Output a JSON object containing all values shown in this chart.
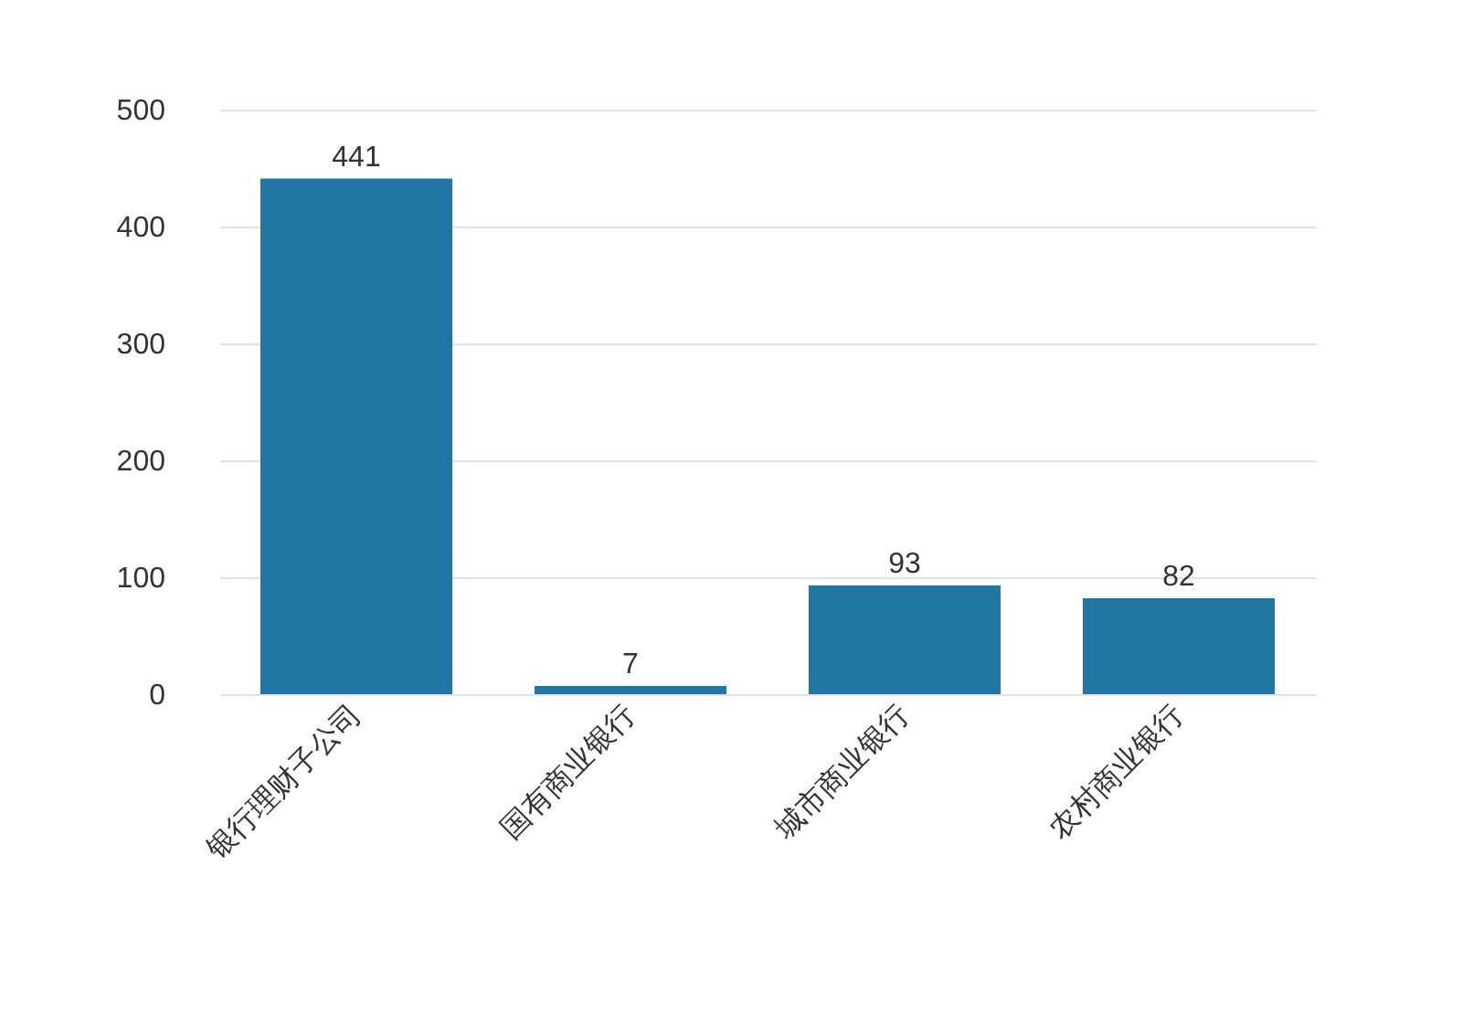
{
  "chart_data": {
    "type": "bar",
    "categories": [
      "银行理财子公司",
      "国有商业银行",
      "城市商业银行",
      "农村商业银行"
    ],
    "values": [
      441,
      7,
      93,
      82
    ],
    "color": "#2176a4",
    "ylim": [
      0,
      500
    ],
    "yticks": [
      0,
      100,
      200,
      300,
      400,
      500
    ],
    "grid": "y",
    "data_labels": true
  }
}
